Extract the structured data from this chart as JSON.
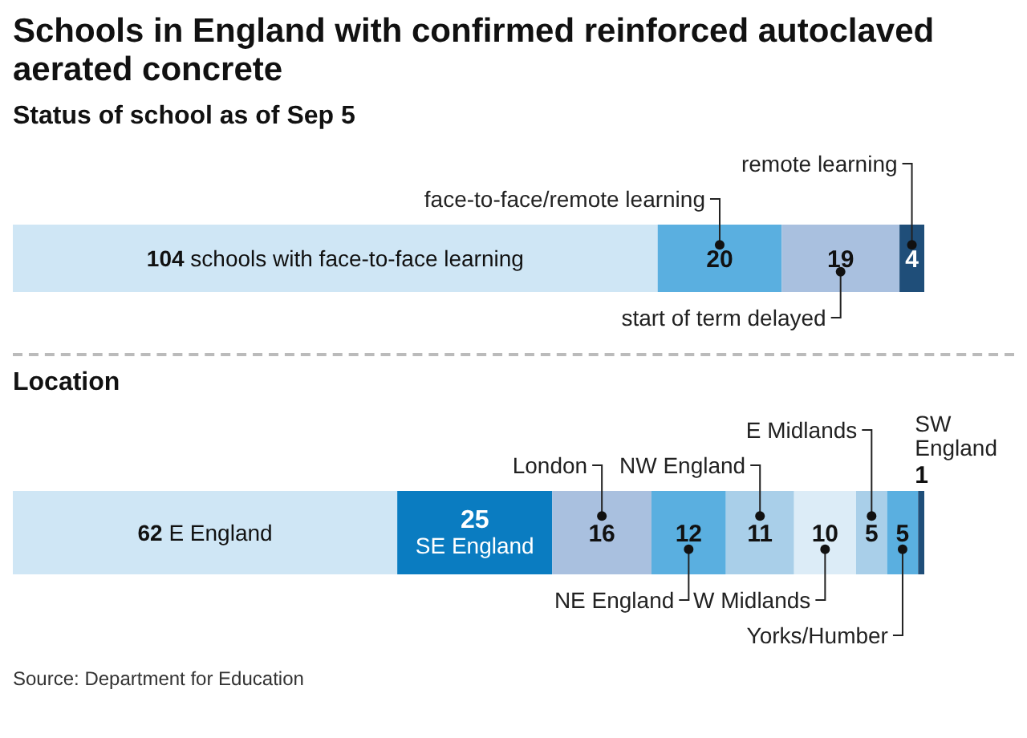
{
  "chart_data": [
    {
      "type": "bar",
      "title": "Schools in England with confirmed reinforced autoclaved aerated concrete",
      "subtitle": "Status of school as of Sep 5",
      "orientation": "horizontal",
      "stacked": true,
      "data_labels": true,
      "tick_labels": false,
      "categories": [
        null
      ],
      "series": [
        {
          "name": "schools with face-to-face learning",
          "color": "#cfe6f5",
          "values": [
            104
          ]
        },
        {
          "name": "face-to-face/remote learning",
          "color": "#5aafe0",
          "values": [
            20
          ]
        },
        {
          "name": "start of term delayed",
          "color": "#a9c0df",
          "values": [
            19
          ]
        },
        {
          "name": "remote learning",
          "color": "#1f4e79",
          "values": [
            4
          ]
        }
      ]
    },
    {
      "type": "bar",
      "title": "Location",
      "orientation": "horizontal",
      "stacked": true,
      "data_labels": true,
      "tick_labels": false,
      "categories": [
        null
      ],
      "annotations": [
        "Source: Department for Education"
      ],
      "series": [
        {
          "name": "E England",
          "color": "#cfe6f5",
          "values": [
            62
          ]
        },
        {
          "name": "SE England",
          "color": "#0a7cc1",
          "values": [
            25
          ]
        },
        {
          "name": "London",
          "color": "#a9c0df",
          "values": [
            16
          ]
        },
        {
          "name": "NE England",
          "color": "#5aafe0",
          "values": [
            12
          ]
        },
        {
          "name": "NW England",
          "color": "#a9cfe9",
          "values": [
            11
          ]
        },
        {
          "name": "W Midlands",
          "color": "#dcecf7",
          "values": [
            10
          ]
        },
        {
          "name": "E Midlands",
          "color": "#a9cfe9",
          "values": [
            5
          ]
        },
        {
          "name": "Yorks/Humber",
          "color": "#5aafe0",
          "values": [
            5
          ]
        },
        {
          "name": "SW England",
          "color": "#1f4e79",
          "values": [
            1
          ]
        }
      ]
    }
  ]
}
